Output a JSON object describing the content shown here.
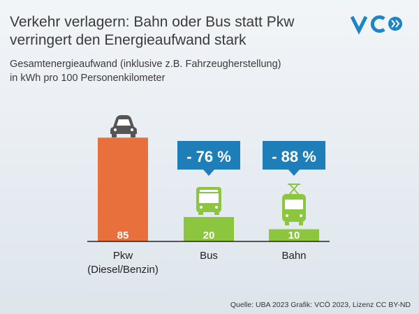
{
  "chart_data": {
    "type": "bar",
    "title": [
      "Verkehr verlagern: Bahn oder Bus statt Pkw",
      "verringert den Energieaufwand stark"
    ],
    "subtitle": [
      "Gesamtenergieaufwand (inklusive z.B. Fahrzeugherstellung)",
      "in kWh pro 100 Personenkilometer"
    ],
    "categories": [
      [
        "Pkw",
        "(Diesel/Benzin)"
      ],
      [
        "Bus"
      ],
      [
        "Bahn"
      ]
    ],
    "values": [
      85,
      20,
      10
    ],
    "colors": [
      "#e8703d",
      "#8cc63f",
      "#8cc63f"
    ],
    "ylim": [
      0,
      100
    ],
    "annotations": [
      {
        "category": 1,
        "text": "- 76 %"
      },
      {
        "category": 2,
        "text": "- 88 %"
      }
    ],
    "source": "Quelle: UBA 2023 Grafik: VCÖ 2023, Lizenz CC BY-ND"
  }
}
